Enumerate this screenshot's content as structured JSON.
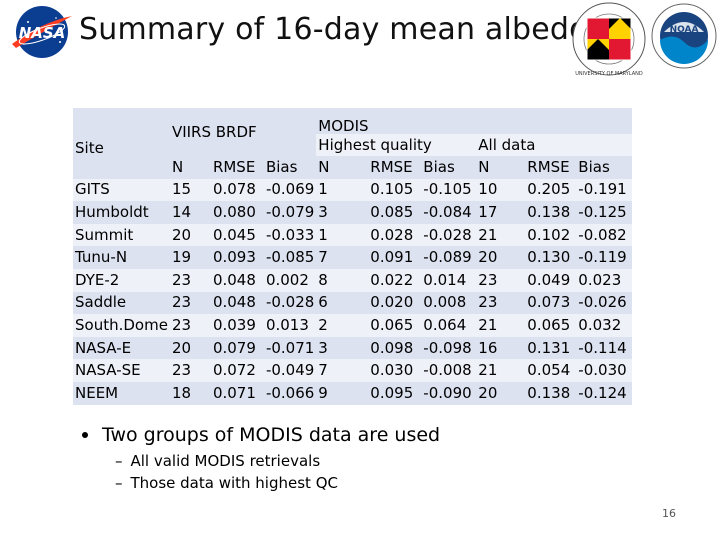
{
  "slide": {
    "title": "Summary of 16-day mean albedo",
    "page_number": "16"
  },
  "logos": {
    "nasa": "NASA",
    "umd": "UNIVERSITY OF MARYLAND",
    "noaa": "NOAA"
  },
  "table": {
    "header_site": "Site",
    "header_viirs": "VIIRS BRDF",
    "header_modis": "MODIS",
    "header_highest": "Highest quality",
    "header_alldata": "All data",
    "subheaders": [
      "N",
      "RMSE",
      "Bias",
      "N",
      "RMSE",
      "Bias",
      "N",
      "RMSE",
      "Bias"
    ],
    "rows": [
      [
        "GITS",
        "15",
        "0.078",
        "-0.069",
        "1",
        "0.105",
        "-0.105",
        "10",
        "0.205",
        "-0.191"
      ],
      [
        "Humboldt",
        "14",
        "0.080",
        "-0.079",
        "3",
        "0.085",
        "-0.084",
        "17",
        "0.138",
        "-0.125"
      ],
      [
        "Summit",
        "20",
        "0.045",
        "-0.033",
        "1",
        "0.028",
        "-0.028",
        "21",
        "0.102",
        "-0.082"
      ],
      [
        "Tunu-N",
        "19",
        "0.093",
        "-0.085",
        "7",
        "0.091",
        "-0.089",
        "20",
        "0.130",
        "-0.119"
      ],
      [
        "DYE-2",
        "23",
        "0.048",
        "0.002",
        "8",
        "0.022",
        "0.014",
        "23",
        "0.049",
        "0.023"
      ],
      [
        "Saddle",
        "23",
        "0.048",
        "-0.028",
        "6",
        "0.020",
        "0.008",
        "23",
        "0.073",
        "-0.026"
      ],
      [
        "South.Dome",
        "23",
        "0.039",
        "0.013",
        "2",
        "0.065",
        "0.064",
        "21",
        "0.065",
        "0.032"
      ],
      [
        "NASA-E",
        "20",
        "0.079",
        "-0.071",
        "3",
        "0.098",
        "-0.098",
        "16",
        "0.131",
        "-0.114"
      ],
      [
        "NASA-SE",
        "23",
        "0.072",
        "-0.049",
        "7",
        "0.030",
        "-0.008",
        "21",
        "0.054",
        "-0.030"
      ],
      [
        "NEEM",
        "18",
        "0.071",
        "-0.066",
        "9",
        "0.095",
        "-0.090",
        "20",
        "0.138",
        "-0.124"
      ]
    ]
  },
  "bullets": {
    "main": "Two groups of MODIS data are used",
    "sub": [
      "All valid MODIS retrievals",
      "Those data with highest QC"
    ]
  }
}
